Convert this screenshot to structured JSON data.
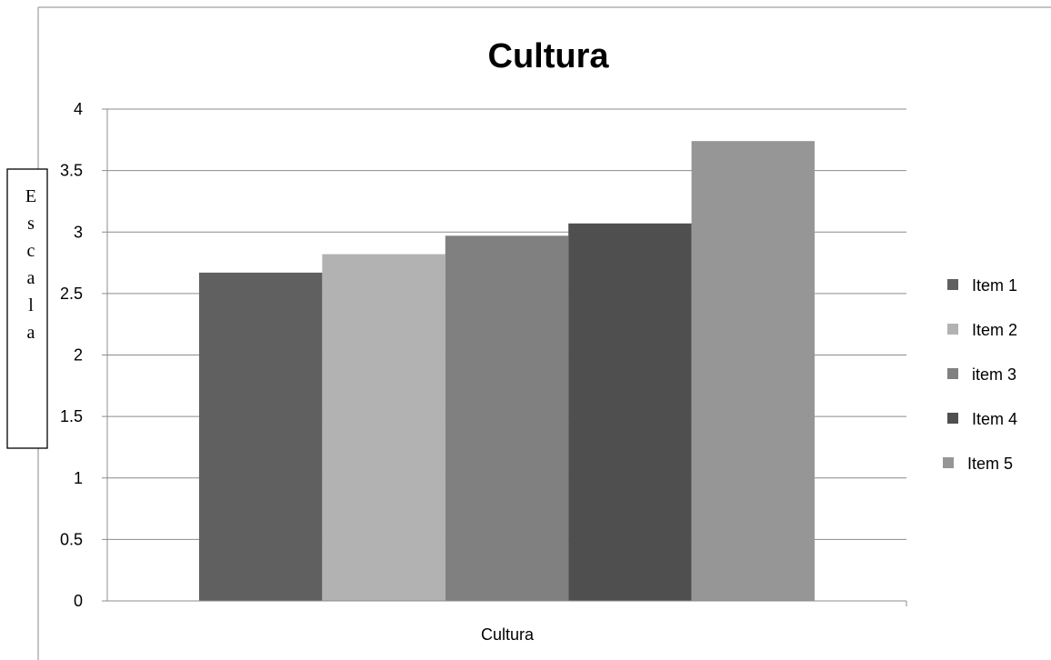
{
  "chart_data": {
    "type": "bar",
    "title": "Cultura",
    "xlabel": "Cultura",
    "ylabel": "Escala",
    "categories": [
      "Cultura"
    ],
    "series": [
      {
        "name": "Item 1",
        "values": [
          2.67
        ],
        "color": "#606060"
      },
      {
        "name": "Item 2",
        "values": [
          2.82
        ],
        "color": "#b2b2b2"
      },
      {
        "name": "item 3",
        "values": [
          2.97
        ],
        "color": "#808080"
      },
      {
        "name": "Item 4",
        "values": [
          3.07
        ],
        "color": "#4f4f4f"
      },
      {
        "name": "Item 5",
        "values": [
          3.74
        ],
        "color": "#969696"
      }
    ],
    "ylim": [
      0,
      4
    ],
    "yticks": [
      "0",
      "0.5",
      "1",
      "1.5",
      "2",
      "2.5",
      "3",
      "3.5",
      "4"
    ],
    "grid": true,
    "legend_position": "right"
  }
}
